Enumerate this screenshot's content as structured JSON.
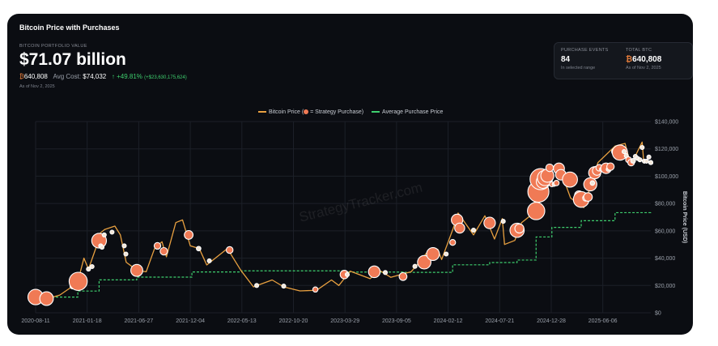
{
  "header": {
    "title": "Bitcoin Price with Purchases",
    "portfolio_label": "BITCOIN PORTFOLIO VALUE",
    "portfolio_value": "$71.07 billion",
    "btc_symbol": "₿",
    "btc_holdings": "640,808",
    "avg_cost_label": "Avg Cost:",
    "avg_cost": "$74,032",
    "gain_pct": "↑ +49.81%",
    "gain_usd": "(+$23,630,175,624)",
    "as_of": "As of Nov 2, 2025"
  },
  "stats": {
    "purchase_events_label": "PURCHASE EVENTS",
    "purchase_events": "84",
    "purchase_events_sub": "In selected range",
    "total_btc_label": "TOTAL BTC",
    "total_btc": "640,808",
    "total_btc_sub": "As of Nov 2, 2025"
  },
  "colors": {
    "price": "#e8a040",
    "avg": "#3ecf6e",
    "purchase": "#f07a55",
    "background": "#0b0d12"
  },
  "chart_data": {
    "type": "line",
    "legend": {
      "price_label": "Bitcoin Price (",
      "price_label_end": " = Strategy Purchase)",
      "avg_label": "Average Purchase Price"
    },
    "watermark": "StrategyTracker.com",
    "ylabel": "Bitcoin Price (USD)",
    "ylim": [
      0,
      140000
    ],
    "y_ticks": [
      "$0",
      "$20,000",
      "$40,000",
      "$60,000",
      "$80,000",
      "$100,000",
      "$120,000",
      "$140,000"
    ],
    "y_tick_values": [
      0,
      20000,
      40000,
      60000,
      80000,
      100000,
      120000,
      140000
    ],
    "x_ticks": [
      "2020-08-11",
      "2021-01-18",
      "2021-06-27",
      "2021-12-04",
      "2022-05-13",
      "2022-10-20",
      "2023-03-29",
      "2023-09-05",
      "2024-02-12",
      "2024-07-21",
      "2024-12-28",
      "2025-06-06"
    ],
    "x_range": [
      "2020-08-11",
      "2025-11-02"
    ],
    "price": [
      [
        "2020-08-11",
        11500
      ],
      [
        "2020-09-20",
        10600
      ],
      [
        "2020-10-25",
        13000
      ],
      [
        "2020-12-01",
        19000
      ],
      [
        "2020-12-20",
        23000
      ],
      [
        "2021-01-08",
        40000
      ],
      [
        "2021-01-22",
        32000
      ],
      [
        "2021-02-15",
        48000
      ],
      [
        "2021-02-21",
        57000
      ],
      [
        "2021-03-13",
        61000
      ],
      [
        "2021-04-14",
        63500
      ],
      [
        "2021-05-01",
        57000
      ],
      [
        "2021-05-19",
        37000
      ],
      [
        "2021-06-22",
        31000
      ],
      [
        "2021-07-20",
        30000
      ],
      [
        "2021-08-15",
        47000
      ],
      [
        "2021-09-07",
        52000
      ],
      [
        "2021-09-21",
        41000
      ],
      [
        "2021-10-20",
        66000
      ],
      [
        "2021-11-10",
        68000
      ],
      [
        "2021-12-04",
        49000
      ],
      [
        "2022-01-01",
        47000
      ],
      [
        "2022-01-24",
        35000
      ],
      [
        "2022-03-29",
        47000
      ],
      [
        "2022-05-10",
        31000
      ],
      [
        "2022-06-18",
        19000
      ],
      [
        "2022-08-15",
        24000
      ],
      [
        "2022-09-20",
        19000
      ],
      [
        "2022-11-09",
        16000
      ],
      [
        "2022-12-31",
        16500
      ],
      [
        "2023-02-15",
        24000
      ],
      [
        "2023-03-10",
        20000
      ],
      [
        "2023-04-14",
        30500
      ],
      [
        "2023-06-15",
        25000
      ],
      [
        "2023-07-14",
        31000
      ],
      [
        "2023-08-18",
        26000
      ],
      [
        "2023-10-20",
        30000
      ],
      [
        "2023-11-15",
        37000
      ],
      [
        "2023-12-08",
        44000
      ],
      [
        "2024-01-11",
        46500
      ],
      [
        "2024-01-23",
        39000
      ],
      [
        "2024-02-28",
        62000
      ],
      [
        "2024-03-14",
        73000
      ],
      [
        "2024-05-01",
        57000
      ],
      [
        "2024-06-05",
        71000
      ],
      [
        "2024-07-05",
        54000
      ],
      [
        "2024-07-29",
        69000
      ],
      [
        "2024-08-05",
        50000
      ],
      [
        "2024-09-06",
        53000
      ],
      [
        "2024-09-27",
        66000
      ],
      [
        "2024-10-29",
        72000
      ],
      [
        "2024-11-12",
        89000
      ],
      [
        "2024-12-17",
        106000
      ],
      [
        "2025-01-20",
        108000
      ],
      [
        "2025-02-26",
        84000
      ],
      [
        "2025-04-08",
        77000
      ],
      [
        "2025-05-22",
        110000
      ],
      [
        "2025-07-14",
        122000
      ],
      [
        "2025-08-14",
        124000
      ],
      [
        "2025-09-01",
        108000
      ],
      [
        "2025-10-06",
        125000
      ],
      [
        "2025-10-11",
        111000
      ],
      [
        "2025-11-02",
        110000
      ]
    ],
    "avg_purchase_price": [
      [
        "2020-08-11",
        11500
      ],
      [
        "2020-12-20",
        15900
      ],
      [
        "2021-02-24",
        24100
      ],
      [
        "2021-06-21",
        26100
      ],
      [
        "2021-12-09",
        29900
      ],
      [
        "2022-05-13",
        30700
      ],
      [
        "2023-03-29",
        29800
      ],
      [
        "2023-09-25",
        29600
      ],
      [
        "2024-02-26",
        35100
      ],
      [
        "2024-06-20",
        36800
      ],
      [
        "2024-09-13",
        38600
      ],
      [
        "2024-11-11",
        55500
      ],
      [
        "2024-12-30",
        62500
      ],
      [
        "2025-03-31",
        67400
      ],
      [
        "2025-07-14",
        73300
      ],
      [
        "2025-11-02",
        74032
      ]
    ],
    "purchases": [
      [
        "2020-08-11",
        11500,
        21398
      ],
      [
        "2020-09-14",
        10400,
        16796
      ],
      [
        "2020-12-04",
        19400,
        2574
      ],
      [
        "2020-12-21",
        23000,
        29646
      ],
      [
        "2021-01-22",
        32000,
        314
      ],
      [
        "2021-02-02",
        33800,
        295
      ],
      [
        "2021-02-24",
        52800,
        19452
      ],
      [
        "2021-03-01",
        49000,
        328
      ],
      [
        "2021-03-05",
        48000,
        205
      ],
      [
        "2021-03-12",
        57000,
        262
      ],
      [
        "2021-04-05",
        59000,
        253
      ],
      [
        "2021-05-13",
        49000,
        271
      ],
      [
        "2021-05-18",
        43000,
        229
      ],
      [
        "2021-06-21",
        31000,
        13005
      ],
      [
        "2021-08-24",
        49000,
        3907
      ],
      [
        "2021-09-13",
        45000,
        5050
      ],
      [
        "2021-11-29",
        57000,
        7002
      ],
      [
        "2021-12-30",
        47000,
        1914
      ],
      [
        "2022-02-01",
        38000,
        660
      ],
      [
        "2022-04-05",
        46000,
        4167
      ],
      [
        "2022-06-28",
        20000,
        480
      ],
      [
        "2022-09-20",
        19500,
        301
      ],
      [
        "2022-12-27",
        17000,
        2395
      ],
      [
        "2023-03-27",
        28000,
        6455
      ],
      [
        "2023-04-05",
        28000,
        1045
      ],
      [
        "2023-06-28",
        30000,
        12333
      ],
      [
        "2023-08-01",
        29500,
        467
      ],
      [
        "2023-09-25",
        26500,
        5445
      ],
      [
        "2023-11-01",
        34000,
        155
      ],
      [
        "2023-11-30",
        37000,
        16130
      ],
      [
        "2023-12-27",
        43000,
        14620
      ],
      [
        "2024-02-06",
        43000,
        850
      ],
      [
        "2024-02-26",
        51500,
        3000
      ],
      [
        "2024-03-11",
        68000,
        12000
      ],
      [
        "2024-03-19",
        62000,
        9245
      ],
      [
        "2024-05-01",
        60500,
        122
      ],
      [
        "2024-06-20",
        65800,
        11931
      ],
      [
        "2024-08-01",
        67000,
        169
      ],
      [
        "2024-09-13",
        60400,
        18300
      ],
      [
        "2024-09-20",
        61700,
        7420
      ],
      [
        "2024-11-11",
        74500,
        27200
      ],
      [
        "2024-11-18",
        88600,
        51780
      ],
      [
        "2024-11-25",
        97800,
        55500
      ],
      [
        "2024-12-02",
        95900,
        15400
      ],
      [
        "2024-12-09",
        98800,
        21550
      ],
      [
        "2024-12-16",
        100400,
        15350
      ],
      [
        "2024-12-23",
        106100,
        5262
      ],
      [
        "2024-12-30",
        94000,
        2138
      ],
      [
        "2025-01-06",
        94000,
        1070
      ],
      [
        "2025-01-13",
        95000,
        2530
      ],
      [
        "2025-01-21",
        105600,
        11000
      ],
      [
        "2025-01-27",
        101000,
        10107
      ],
      [
        "2025-02-24",
        97500,
        20356
      ],
      [
        "2025-03-17",
        84000,
        130
      ],
      [
        "2025-03-24",
        86000,
        6911
      ],
      [
        "2025-03-31",
        83000,
        22048
      ],
      [
        "2025-04-14",
        84000,
        3459
      ],
      [
        "2025-04-21",
        84800,
        6556
      ],
      [
        "2025-04-28",
        94000,
        15355
      ],
      [
        "2025-05-05",
        95000,
        1895
      ],
      [
        "2025-05-12",
        102500,
        13390
      ],
      [
        "2025-05-19",
        104000,
        7390
      ],
      [
        "2025-05-26",
        106200,
        4020
      ],
      [
        "2025-06-02",
        105000,
        705
      ],
      [
        "2025-06-09",
        106200,
        1045
      ],
      [
        "2025-06-16",
        105800,
        10100
      ],
      [
        "2025-06-23",
        105000,
        245
      ],
      [
        "2025-06-30",
        107000,
        4980
      ],
      [
        "2025-07-14",
        118000,
        4225
      ],
      [
        "2025-07-29",
        117300,
        21021
      ],
      [
        "2025-08-11",
        118000,
        155
      ],
      [
        "2025-08-18",
        115000,
        430
      ],
      [
        "2025-08-25",
        112000,
        3081
      ],
      [
        "2025-09-02",
        110000,
        4048
      ],
      [
        "2025-09-08",
        111200,
        1955
      ],
      [
        "2025-09-15",
        114500,
        525
      ],
      [
        "2025-09-22",
        113000,
        850
      ],
      [
        "2025-09-29",
        112000,
        196
      ],
      [
        "2025-10-06",
        121000,
        100
      ],
      [
        "2025-10-13",
        111000,
        220
      ],
      [
        "2025-10-20",
        111000,
        168
      ],
      [
        "2025-10-27",
        114000,
        390
      ],
      [
        "2025-11-02",
        110000,
        397
      ],
      [
        "2025-11-02",
        110000,
        400
      ]
    ]
  }
}
